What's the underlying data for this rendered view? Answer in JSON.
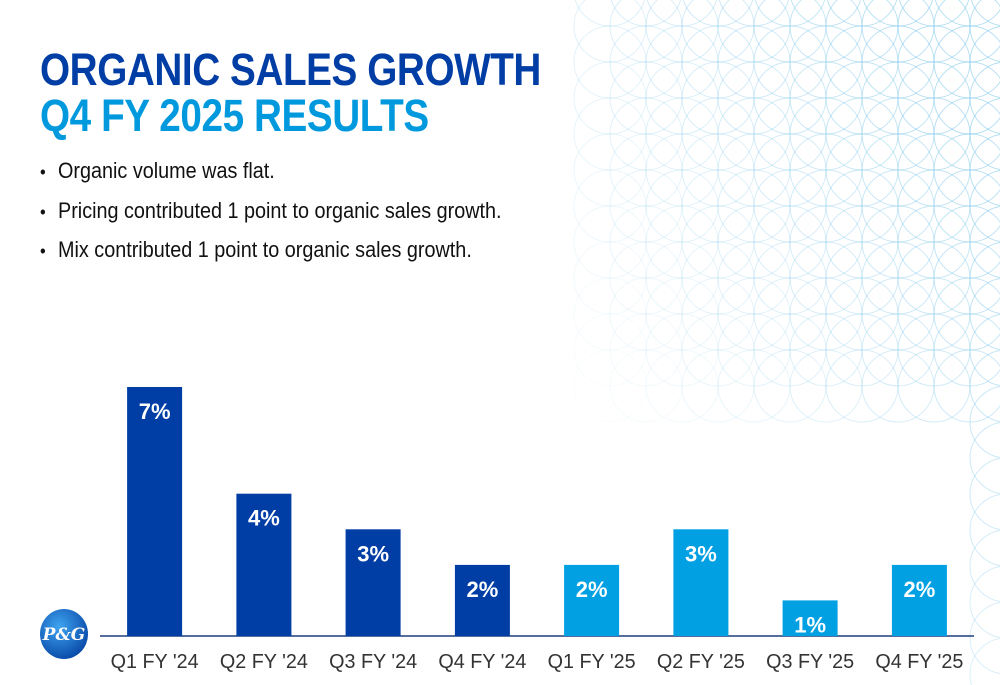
{
  "slide": {
    "title_line1": "ORGANIC SALES GROWTH",
    "title_line2": "Q4 FY 2025 RESULTS",
    "bullets": [
      "Organic volume was flat.",
      "Pricing contributed 1 point to organic sales growth.",
      "Mix contributed 1 point to organic sales growth."
    ],
    "logo_text": "P&G"
  },
  "colors": {
    "dark_blue": "#003DA5",
    "light_blue": "#00A0E3",
    "title_light": "#0099DD",
    "axis": "#1F3F7A"
  },
  "chart_data": {
    "type": "bar",
    "categories": [
      "Q1 FY '24",
      "Q2 FY '24",
      "Q3 FY '24",
      "Q4 FY '24",
      "Q1 FY '25",
      "Q2 FY '25",
      "Q3 FY '25",
      "Q4 FY '25"
    ],
    "values": [
      7,
      4,
      3,
      2,
      2,
      3,
      1,
      2
    ],
    "labels": [
      "7%",
      "4%",
      "3%",
      "2%",
      "2%",
      "3%",
      "1%",
      "2%"
    ],
    "bar_colors": [
      "#003DA5",
      "#003DA5",
      "#003DA5",
      "#003DA5",
      "#00A0E3",
      "#00A0E3",
      "#00A0E3",
      "#00A0E3"
    ],
    "title": "",
    "xlabel": "",
    "ylabel": "",
    "ylim": [
      0,
      7
    ],
    "grid": false,
    "legend": "none"
  }
}
